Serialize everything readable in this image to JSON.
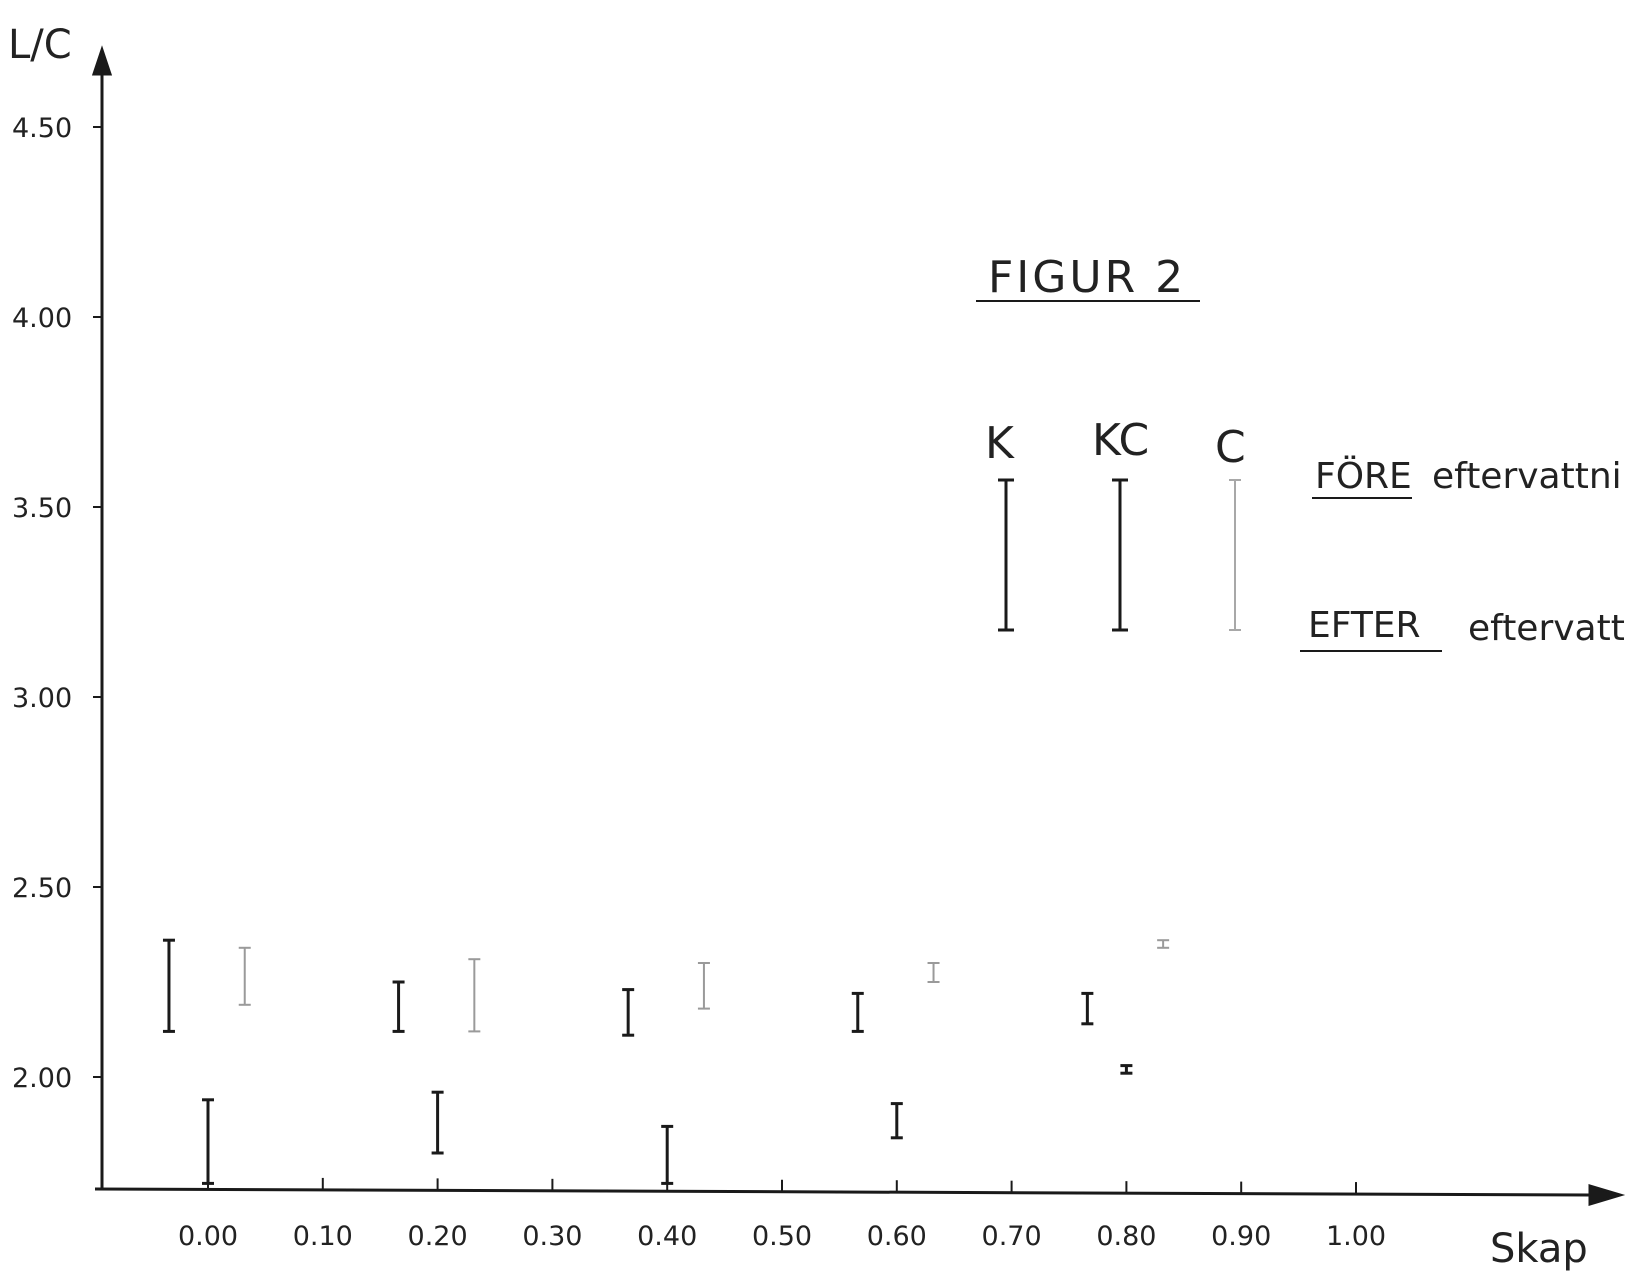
{
  "chart_data": {
    "type": "scatter",
    "title": "FIGUR 2",
    "xlabel": "Skap",
    "ylabel": "L/C",
    "xlim": [
      -0.1,
      1.1
    ],
    "ylim": [
      1.7,
      4.7
    ],
    "x_ticks": [
      "0.00",
      "0.10",
      "0.20",
      "0.30",
      "0.40",
      "0.50",
      "0.60",
      "0.70",
      "0.80",
      "0.90",
      "1.00"
    ],
    "y_ticks": [
      "2.00",
      "2.50",
      "3.00",
      "3.50",
      "4.00",
      "4.50"
    ],
    "legend": {
      "series_labels": [
        "K",
        "KC",
        "C"
      ],
      "top_label": "FÖRE",
      "top_text": "eftervattni",
      "bottom_label": "EFTER",
      "bottom_text": "eftervattn"
    },
    "series": [
      {
        "name": "K",
        "color": "#1a1a1a",
        "ranges": [
          {
            "x": 0.0,
            "low": 1.72,
            "high": 1.94
          },
          {
            "x": 0.2,
            "low": 1.8,
            "high": 1.96
          },
          {
            "x": 0.4,
            "low": 1.72,
            "high": 1.87
          },
          {
            "x": 0.6,
            "low": 1.84,
            "high": 1.93
          },
          {
            "x": 0.8,
            "low": 2.01,
            "high": 2.03
          }
        ]
      },
      {
        "name": "KC",
        "color": "#1a1a1a",
        "ranges": [
          {
            "x": 0.0,
            "low": 2.12,
            "high": 2.36
          },
          {
            "x": 0.2,
            "low": 2.12,
            "high": 2.25
          },
          {
            "x": 0.4,
            "low": 2.11,
            "high": 2.23
          },
          {
            "x": 0.6,
            "low": 2.12,
            "high": 2.22
          },
          {
            "x": 0.8,
            "low": 2.14,
            "high": 2.22
          }
        ]
      },
      {
        "name": "C",
        "color": "#9a9a9a",
        "ranges": [
          {
            "x": 0.0,
            "low": 2.19,
            "high": 2.34
          },
          {
            "x": 0.2,
            "low": 2.12,
            "high": 2.31
          },
          {
            "x": 0.4,
            "low": 2.18,
            "high": 2.3
          },
          {
            "x": 0.6,
            "low": 2.25,
            "high": 2.3
          },
          {
            "x": 0.8,
            "low": 2.34,
            "high": 2.36
          }
        ]
      }
    ]
  }
}
